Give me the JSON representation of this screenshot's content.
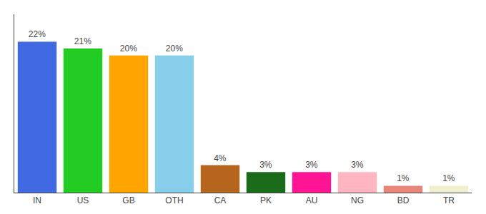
{
  "chart_data": {
    "type": "bar",
    "categories": [
      "IN",
      "US",
      "GB",
      "OTH",
      "CA",
      "PK",
      "AU",
      "NG",
      "BD",
      "TR"
    ],
    "values": [
      22,
      21,
      20,
      20,
      4,
      3,
      3,
      3,
      1,
      1
    ],
    "value_labels": [
      "22%",
      "21%",
      "20%",
      "20%",
      "4%",
      "3%",
      "3%",
      "3%",
      "1%",
      "1%"
    ],
    "colors": [
      "#4169e1",
      "#22cc22",
      "#ffa500",
      "#87ceeb",
      "#b5651d",
      "#1a6b1a",
      "#ff1493",
      "#ffb6c1",
      "#e8867a",
      "#f0f0d0"
    ],
    "ylim": [
      0,
      26
    ],
    "data_labels": true,
    "tick_labels": "x",
    "grid": false
  }
}
